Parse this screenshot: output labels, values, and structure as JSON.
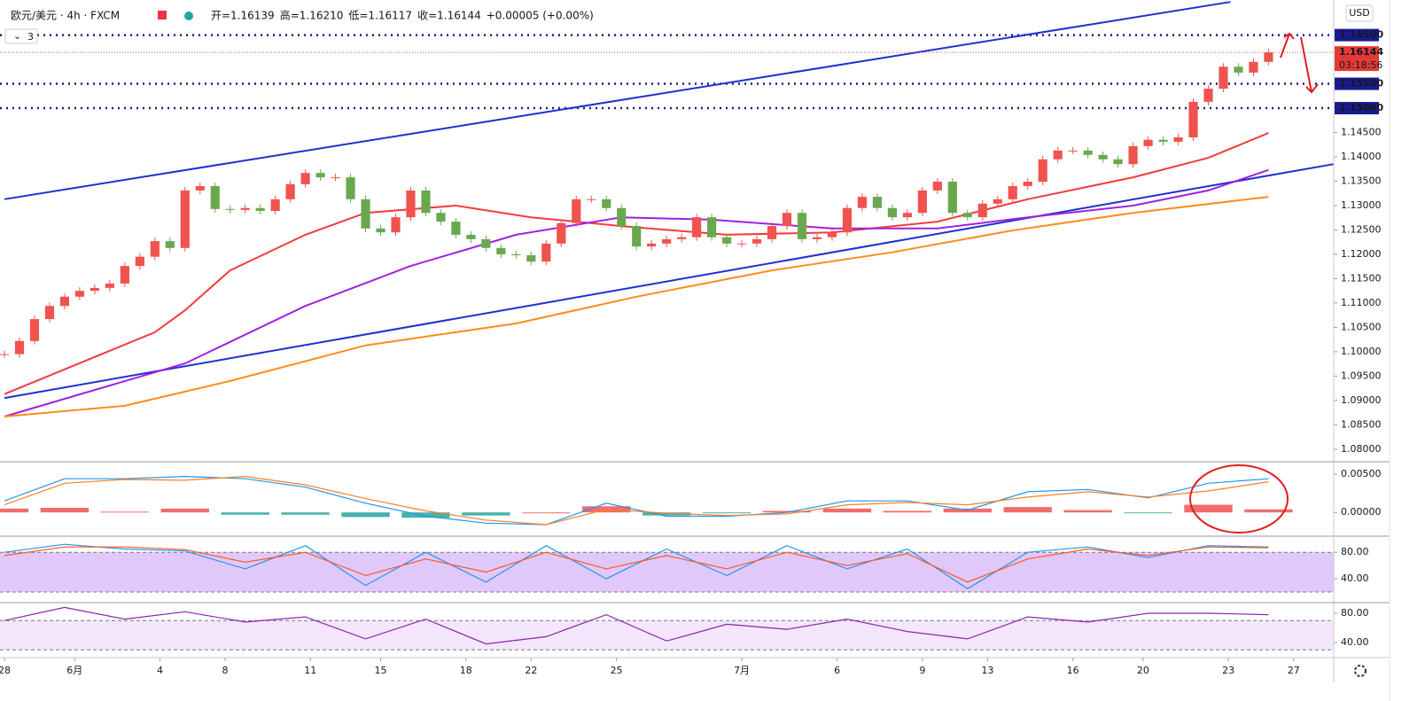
{
  "chart_data": [
    {
      "type": "candlestick",
      "title": "欧元/美元 · 4h · FXCM",
      "ohlc_text": [
        "开=1.16139",
        "高=1.16210",
        "低=1.16117",
        "收=1.16144",
        "+0.00005 (+0.00%)"
      ],
      "interval_badge": "3",
      "currency": "USD",
      "countdown": "03:18:56",
      "up_color": "#ef5350",
      "down_color": "#6aa84f",
      "x": [
        0,
        3,
        6,
        9,
        12,
        15,
        18,
        21,
        24,
        27,
        30,
        33,
        36,
        39,
        42,
        45,
        48,
        51,
        54,
        57,
        60,
        63,
        66,
        69,
        72,
        75,
        78,
        81,
        84,
        87,
        90,
        93,
        96,
        99,
        102,
        105,
        108,
        111,
        114,
        117,
        120,
        123,
        126,
        129,
        132,
        135,
        138,
        141,
        144,
        147,
        150,
        153,
        156,
        159,
        162,
        165,
        168,
        171,
        174,
        177,
        180,
        183,
        186,
        189,
        192,
        195,
        198,
        201,
        204,
        207,
        210,
        213,
        216,
        219,
        222,
        225,
        228,
        231,
        234,
        237,
        240,
        243,
        246,
        249,
        252
      ],
      "close": [
        1.0995,
        1.1022,
        1.1067,
        1.1094,
        1.1113,
        1.1125,
        1.1131,
        1.114,
        1.1176,
        1.1195,
        1.1227,
        1.1213,
        1.1331,
        1.134,
        1.1293,
        1.1291,
        1.1295,
        1.1289,
        1.1313,
        1.1344,
        1.1367,
        1.1358,
        1.1358,
        1.1313,
        1.1253,
        1.1245,
        1.1276,
        1.1331,
        1.1285,
        1.1267,
        1.124,
        1.1231,
        1.1213,
        1.12,
        1.1198,
        1.1185,
        1.1222,
        1.1264,
        1.1313,
        1.1313,
        1.1295,
        1.1258,
        1.1216,
        1.1222,
        1.1231,
        1.1235,
        1.1276,
        1.1235,
        1.1222,
        1.1222,
        1.1231,
        1.1258,
        1.1285,
        1.1231,
        1.1235,
        1.1245,
        1.1295,
        1.1318,
        1.1295,
        1.1276,
        1.1285,
        1.1331,
        1.1349,
        1.1285,
        1.1276,
        1.1304,
        1.1313,
        1.134,
        1.1349,
        1.1395,
        1.1413,
        1.1413,
        1.1404,
        1.1395,
        1.1385,
        1.1422,
        1.1435,
        1.1431,
        1.144,
        1.1513,
        1.154,
        1.1585,
        1.1573,
        1.1595,
        1.16144
      ],
      "xlim": [
        0,
        265
      ],
      "ylim": [
        1.0776,
        1.1722
      ],
      "yticks": [
        {
          "value": 1.08,
          "label": "1.08000"
        },
        {
          "value": 1.085,
          "label": "1.08500"
        },
        {
          "value": 1.09,
          "label": "1.09000"
        },
        {
          "value": 1.095,
          "label": "1.09500"
        },
        {
          "value": 1.1,
          "label": "1.10000"
        },
        {
          "value": 1.105,
          "label": "1.10500"
        },
        {
          "value": 1.11,
          "label": "1.11000"
        },
        {
          "value": 1.115,
          "label": "1.11500"
        },
        {
          "value": 1.12,
          "label": "1.12000"
        },
        {
          "value": 1.125,
          "label": "1.12500"
        },
        {
          "value": 1.13,
          "label": "1.13000"
        },
        {
          "value": 1.135,
          "label": "1.13500"
        },
        {
          "value": 1.14,
          "label": "1.14000"
        },
        {
          "value": 1.145,
          "label": "1.14500"
        }
      ],
      "xticks": [
        {
          "value": 0,
          "label": "28"
        },
        {
          "value": 14,
          "label": "6月"
        },
        {
          "value": 31,
          "label": "4"
        },
        {
          "value": 44,
          "label": "8"
        },
        {
          "value": 61,
          "label": "11"
        },
        {
          "value": 75,
          "label": "15"
        },
        {
          "value": 92,
          "label": "18"
        },
        {
          "value": 105,
          "label": "22"
        },
        {
          "value": 122,
          "label": "25"
        },
        {
          "value": 147,
          "label": "7月"
        },
        {
          "value": 166,
          "label": "6"
        },
        {
          "value": 183,
          "label": "9"
        },
        {
          "value": 196,
          "label": "13"
        },
        {
          "value": 213,
          "label": "16"
        },
        {
          "value": 227,
          "label": "20"
        },
        {
          "value": 244,
          "label": "23"
        },
        {
          "value": 257,
          "label": "27"
        }
      ],
      "levels": [
        {
          "value": 1.165,
          "label": "1.16500"
        },
        {
          "value": 1.155,
          "label": "1.15500"
        },
        {
          "value": 1.15,
          "label": "1.15000"
        }
      ],
      "level_color": "#1a1a8c",
      "last_price": {
        "value": 1.16144,
        "label": "1.16144"
      },
      "moving_averages": [
        {
          "color": "#f23c3c",
          "x": [
            0,
            30,
            36,
            45,
            60,
            72,
            90,
            105,
            123,
            144,
            165,
            186,
            204,
            225,
            240,
            252
          ],
          "values": [
            1.0913,
            1.104,
            1.1085,
            1.1167,
            1.124,
            1.1285,
            1.13,
            1.1276,
            1.1258,
            1.124,
            1.1245,
            1.1267,
            1.1313,
            1.1358,
            1.1398,
            1.1449
          ]
        },
        {
          "color": "#a020e0",
          "x": [
            0,
            36,
            60,
            81,
            102,
            123,
            141,
            165,
            186,
            204,
            225,
            240,
            252
          ],
          "values": [
            1.0867,
            1.0976,
            1.1094,
            1.1176,
            1.124,
            1.1276,
            1.1271,
            1.1253,
            1.1253,
            1.1276,
            1.13,
            1.1331,
            1.1373
          ]
        },
        {
          "color": "#ff8c1a",
          "x": [
            0,
            24,
            45,
            72,
            102,
            126,
            153,
            177,
            201,
            225,
            252
          ],
          "values": [
            1.0867,
            1.0889,
            1.094,
            1.1013,
            1.1058,
            1.1113,
            1.1167,
            1.1204,
            1.1249,
            1.1285,
            1.1318
          ]
        }
      ],
      "trendlines": [
        {
          "color": "#1f2fd0",
          "x": [
            0,
            244.4
          ],
          "values": [
            1.1313,
            1.1718
          ]
        },
        {
          "color": "#1f2fd0",
          "x": [
            0,
            265
          ],
          "values": [
            1.0905,
            1.1385
          ]
        }
      ]
    },
    {
      "type": "macd",
      "x": [
        0,
        12,
        24,
        36,
        48,
        60,
        72,
        84,
        96,
        108,
        120,
        132,
        144,
        156,
        168,
        180,
        192,
        204,
        216,
        228,
        240,
        252
      ],
      "xlim": [
        0,
        265
      ],
      "ylim": [
        -0.0031,
        0.0065
      ],
      "yticks": [
        {
          "value": 0.005,
          "label": "0.00500"
        },
        {
          "value": 0,
          "label": "0.00000"
        }
      ],
      "histogram": [
        0.0005,
        0.0006,
        0.0001,
        0.0005,
        -0.0003,
        -0.0003,
        -0.0006,
        -0.0007,
        -0.0004,
        0,
        0.0008,
        -0.0004,
        -0.0001,
        0.0002,
        0.0005,
        0.0002,
        0.0005,
        0.0007,
        0.0003,
        -0.0001,
        0.001,
        0.0004
      ],
      "up_color": "#ef5350",
      "down_color": "#26a69a",
      "series": [
        {
          "color": "#2196f3",
          "values": [
            0.0015,
            0.0044,
            0.0044,
            0.0047,
            0.0044,
            0.0033,
            0.0012,
            -0.0005,
            -0.0014,
            -0.0016,
            0.0012,
            -0.0005,
            -0.0005,
            0,
            0.0015,
            0.0015,
            0.0003,
            0.0027,
            0.003,
            0.0019,
            0.0038,
            0.0044
          ]
        },
        {
          "color": "#ff7f27",
          "values": [
            0.001,
            0.0038,
            0.0043,
            0.0042,
            0.0047,
            0.0036,
            0.0018,
            0.0002,
            -0.001,
            -0.0016,
            0.0004,
            -0.0001,
            -0.0004,
            -0.0002,
            0.001,
            0.0013,
            0.001,
            0.002,
            0.0027,
            0.002,
            0.0028,
            0.004
          ]
        }
      ]
    },
    {
      "type": "oscillator",
      "x": [
        0,
        12,
        24,
        36,
        48,
        60,
        72,
        84,
        96,
        108,
        120,
        132,
        144,
        156,
        168,
        180,
        192,
        204,
        216,
        228,
        240,
        252
      ],
      "xlim": [
        0,
        265
      ],
      "ylim": [
        4,
        103
      ],
      "band": [
        20,
        80
      ],
      "band_color": "#e1c8fb",
      "yticks": [
        {
          "value": 80,
          "label": "80.00"
        },
        {
          "value": 40,
          "label": "40.00"
        }
      ],
      "series": [
        {
          "color": "#2196f3",
          "values": [
            80,
            92,
            85,
            82,
            55,
            90,
            30,
            80,
            35,
            90,
            40,
            85,
            45,
            90,
            55,
            85,
            25,
            80,
            88,
            72,
            90,
            88
          ]
        },
        {
          "color": "#ff5722",
          "values": [
            75,
            88,
            88,
            84,
            65,
            80,
            45,
            70,
            50,
            80,
            55,
            75,
            55,
            80,
            60,
            78,
            35,
            70,
            85,
            75,
            88,
            87
          ]
        }
      ]
    },
    {
      "type": "oscillator",
      "x": [
        0,
        12,
        24,
        36,
        48,
        60,
        72,
        84,
        96,
        108,
        120,
        132,
        144,
        156,
        168,
        180,
        192,
        204,
        216,
        228,
        240,
        252
      ],
      "xlim": [
        0,
        265
      ],
      "ylim": [
        19.4,
        93.3
      ],
      "band": [
        30,
        70
      ],
      "band_color": "#f3e6fd",
      "yticks": [
        {
          "value": 80,
          "label": "80.00"
        },
        {
          "value": 40,
          "label": "40.00"
        }
      ],
      "series": [
        {
          "color": "#8e24aa",
          "values": [
            70,
            88,
            72,
            82,
            68,
            75,
            45,
            72,
            38,
            48,
            78,
            42,
            65,
            58,
            72,
            55,
            45,
            75,
            68,
            80,
            80,
            78
          ]
        }
      ]
    }
  ]
}
